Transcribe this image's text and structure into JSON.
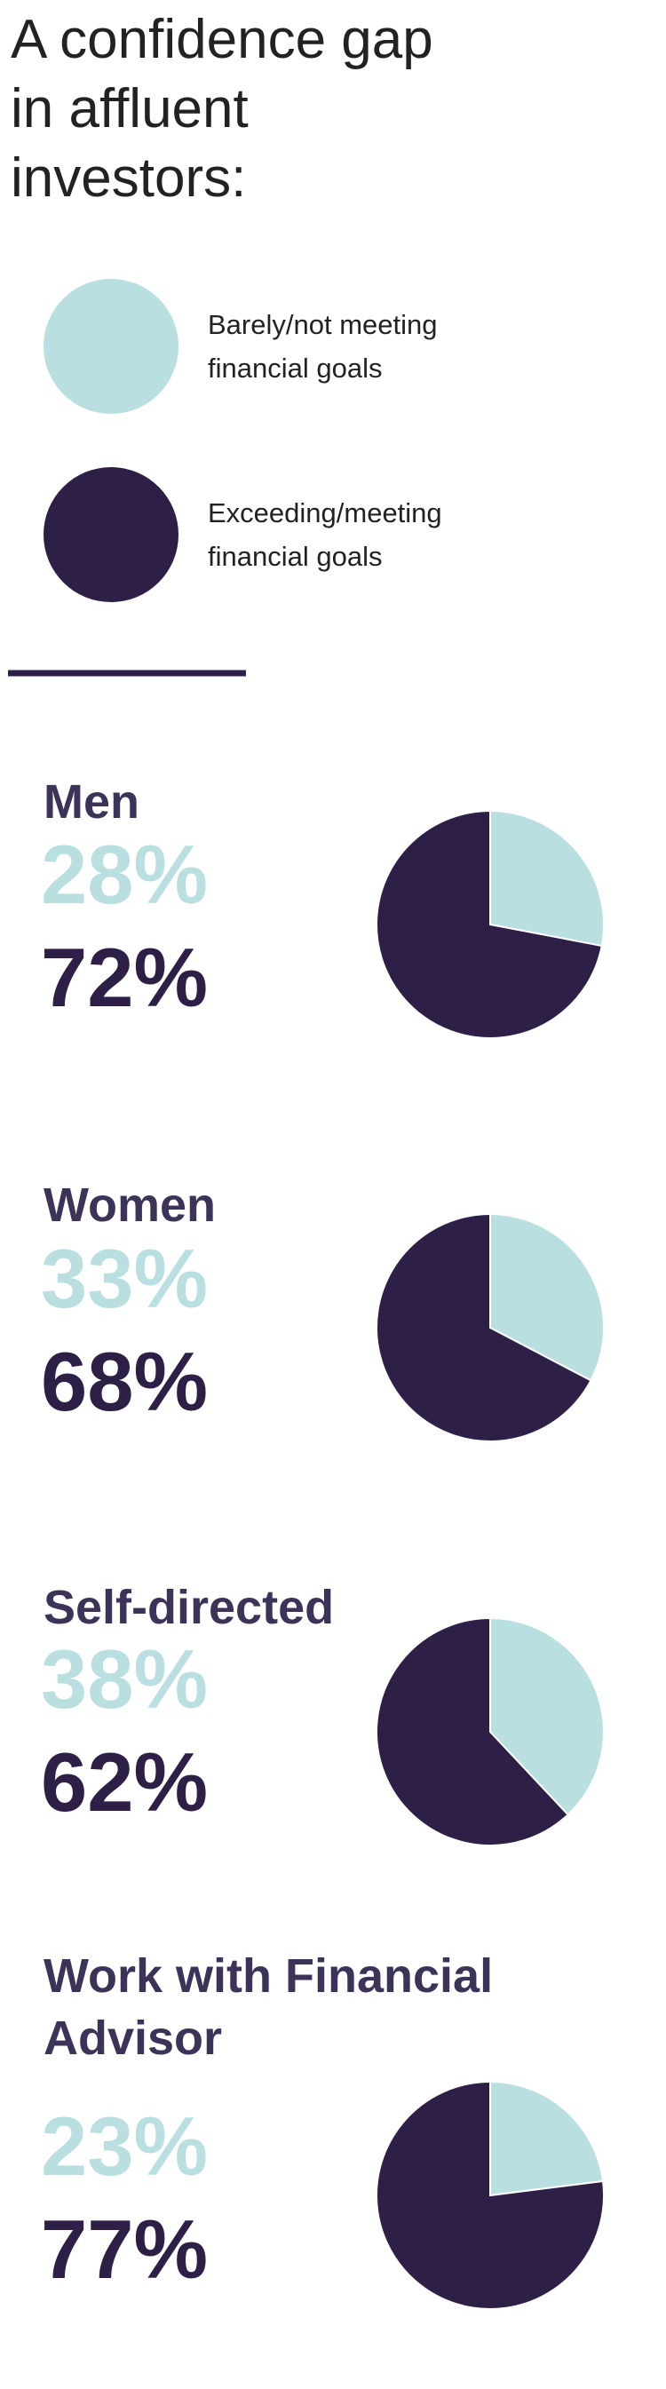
{
  "title": "A confidence gap in affluent investors:",
  "legend": [
    {
      "label": "Barely/not meeting financial goals",
      "color": "#b9dfe1"
    },
    {
      "label": "Exceeding/meeting financial goals",
      "color": "#2d1f45"
    }
  ],
  "chart_data": [
    {
      "type": "pie",
      "title": "Men",
      "values": [
        28,
        72
      ],
      "value_labels": [
        "28%",
        "72%"
      ],
      "colors": [
        "#b9dfe1",
        "#2d1f45"
      ]
    },
    {
      "type": "pie",
      "title": "Women",
      "values": [
        33,
        68
      ],
      "value_labels": [
        "33%",
        "68%"
      ],
      "colors": [
        "#b9dfe1",
        "#2d1f45"
      ]
    },
    {
      "type": "pie",
      "title": "Self-directed",
      "values": [
        38,
        62
      ],
      "value_labels": [
        "38%",
        "62%"
      ],
      "colors": [
        "#b9dfe1",
        "#2d1f45"
      ]
    },
    {
      "type": "pie",
      "title": "Work with Financial Advisor",
      "values": [
        23,
        77
      ],
      "value_labels": [
        "23%",
        "77%"
      ],
      "colors": [
        "#b9dfe1",
        "#2d1f45"
      ]
    }
  ]
}
